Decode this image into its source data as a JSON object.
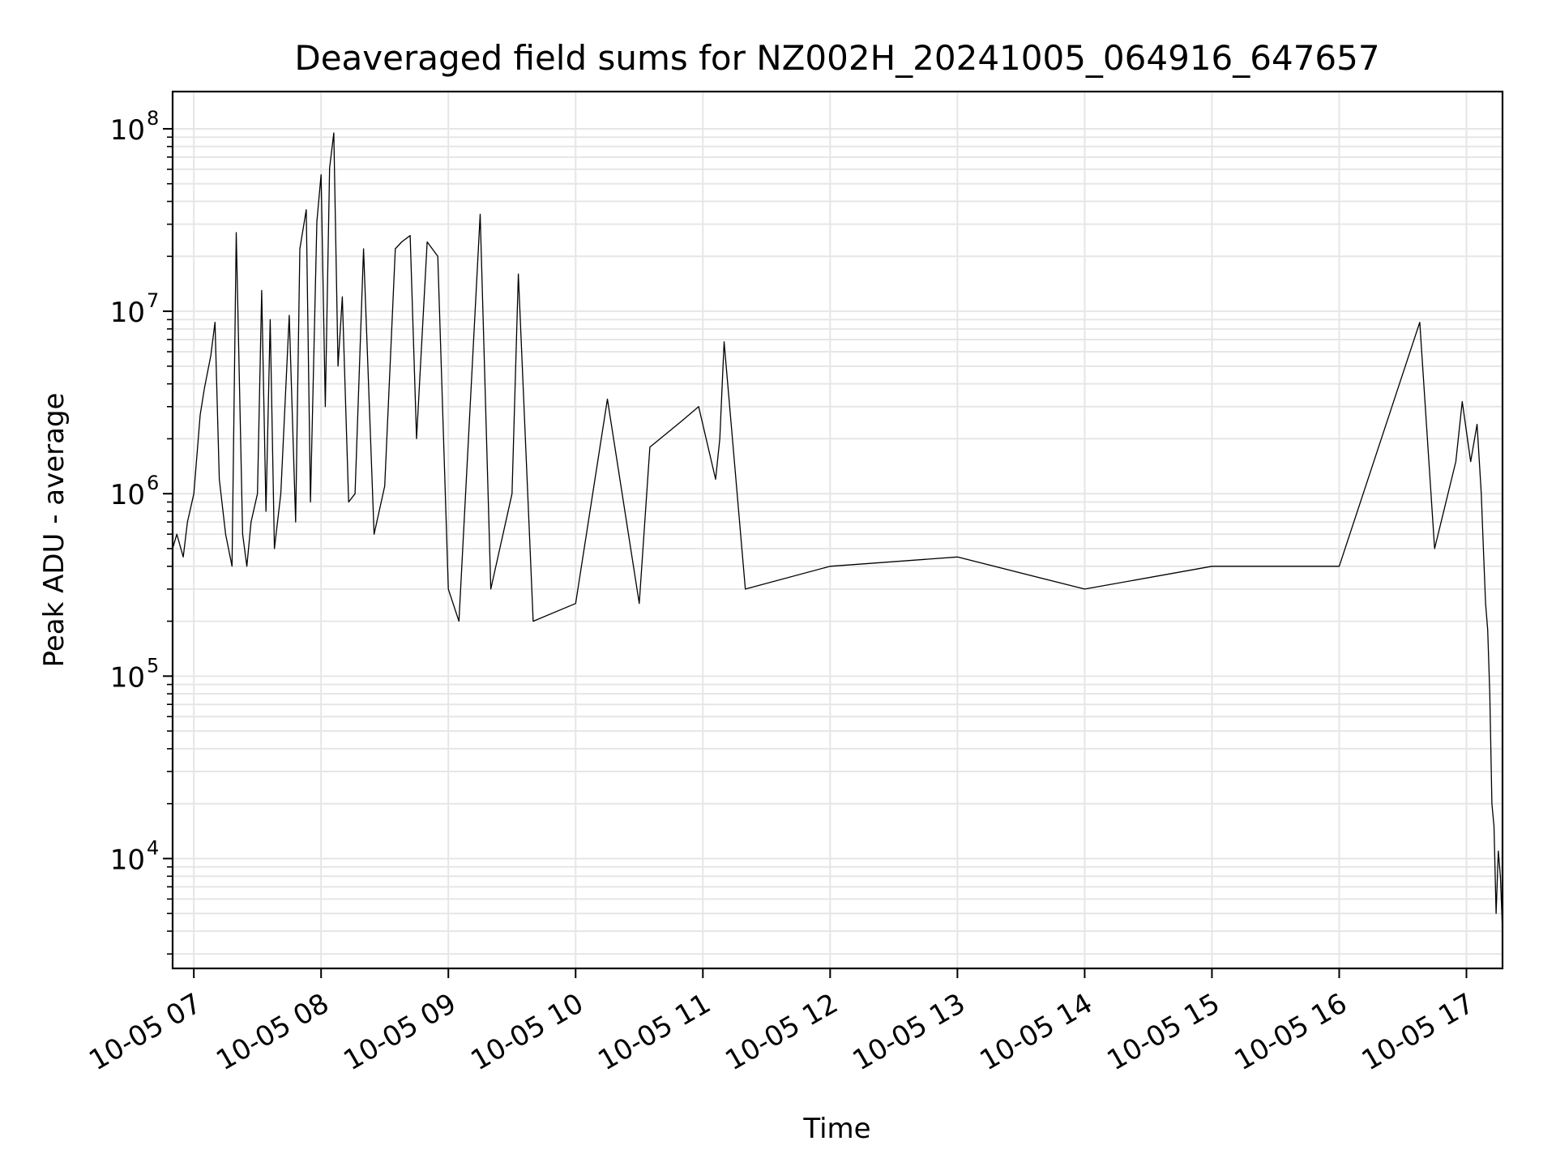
{
  "chart_data": {
    "type": "line",
    "title": "Deaveraged field sums for NZ002H_20241005_064916_647657",
    "xlabel": "Time",
    "ylabel": "Peak ADU - average",
    "yscale": "log",
    "ylim": [
      2500,
      160000000
    ],
    "xlim": [
      "2024-10-05 06:50",
      "2024-10-05 17:17"
    ],
    "grid": true,
    "grid_minor": true,
    "x_ticks": [
      {
        "value": "2024-10-05 07:00",
        "label": "10-05 07"
      },
      {
        "value": "2024-10-05 08:00",
        "label": "10-05 08"
      },
      {
        "value": "2024-10-05 09:00",
        "label": "10-05 09"
      },
      {
        "value": "2024-10-05 10:00",
        "label": "10-05 10"
      },
      {
        "value": "2024-10-05 11:00",
        "label": "10-05 11"
      },
      {
        "value": "2024-10-05 12:00",
        "label": "10-05 12"
      },
      {
        "value": "2024-10-05 13:00",
        "label": "10-05 13"
      },
      {
        "value": "2024-10-05 14:00",
        "label": "10-05 14"
      },
      {
        "value": "2024-10-05 15:00",
        "label": "10-05 15"
      },
      {
        "value": "2024-10-05 16:00",
        "label": "10-05 16"
      },
      {
        "value": "2024-10-05 17:00",
        "label": "10-05 17"
      }
    ],
    "y_ticks": [
      {
        "value": 10000,
        "base": "10",
        "exp": "4"
      },
      {
        "value": 100000,
        "base": "10",
        "exp": "5"
      },
      {
        "value": 1000000,
        "base": "10",
        "exp": "6"
      },
      {
        "value": 10000000,
        "base": "10",
        "exp": "7"
      },
      {
        "value": 100000000,
        "base": "10",
        "exp": "8"
      }
    ],
    "line_color": "#000000",
    "grid_color": "#e6e6e6",
    "series": [
      {
        "points": [
          [
            "2024-10-05 06:50",
            500000
          ],
          [
            "2024-10-05 06:52",
            600000
          ],
          [
            "2024-10-05 06:55",
            450000
          ],
          [
            "2024-10-05 06:57",
            700000
          ],
          [
            "2024-10-05 07:00",
            1000000
          ],
          [
            "2024-10-05 07:03",
            2700000
          ],
          [
            "2024-10-05 07:05",
            3800000
          ],
          [
            "2024-10-05 07:08",
            5700000
          ],
          [
            "2024-10-05 07:10",
            8700000
          ],
          [
            "2024-10-05 07:12",
            1200000
          ],
          [
            "2024-10-05 07:15",
            600000
          ],
          [
            "2024-10-05 07:18",
            400000
          ],
          [
            "2024-10-05 07:20",
            27000000
          ],
          [
            "2024-10-05 07:23",
            600000
          ],
          [
            "2024-10-05 07:25",
            400000
          ],
          [
            "2024-10-05 07:27",
            700000
          ],
          [
            "2024-10-05 07:30",
            1000000
          ],
          [
            "2024-10-05 07:32",
            13000000
          ],
          [
            "2024-10-05 07:34",
            800000
          ],
          [
            "2024-10-05 07:36",
            9000000
          ],
          [
            "2024-10-05 07:38",
            500000
          ],
          [
            "2024-10-05 07:41",
            1000000
          ],
          [
            "2024-10-05 07:45",
            9500000
          ],
          [
            "2024-10-05 07:48",
            700000
          ],
          [
            "2024-10-05 07:50",
            22000000
          ],
          [
            "2024-10-05 07:53",
            36000000
          ],
          [
            "2024-10-05 07:55",
            900000
          ],
          [
            "2024-10-05 07:58",
            31000000
          ],
          [
            "2024-10-05 08:00",
            56000000
          ],
          [
            "2024-10-05 08:02",
            3000000
          ],
          [
            "2024-10-05 08:04",
            61000000
          ],
          [
            "2024-10-05 08:06",
            95000000
          ],
          [
            "2024-10-05 08:08",
            5000000
          ],
          [
            "2024-10-05 08:10",
            12000000
          ],
          [
            "2024-10-05 08:13",
            900000
          ],
          [
            "2024-10-05 08:16",
            1000000
          ],
          [
            "2024-10-05 08:20",
            22000000
          ],
          [
            "2024-10-05 08:25",
            600000
          ],
          [
            "2024-10-05 08:30",
            1100000
          ],
          [
            "2024-10-05 08:35",
            22000000
          ],
          [
            "2024-10-05 08:38",
            24000000
          ],
          [
            "2024-10-05 08:42",
            26000000
          ],
          [
            "2024-10-05 08:45",
            2000000
          ],
          [
            "2024-10-05 08:50",
            24000000
          ],
          [
            "2024-10-05 08:55",
            20000000
          ],
          [
            "2024-10-05 09:00",
            300000
          ],
          [
            "2024-10-05 09:05",
            200000
          ],
          [
            "2024-10-05 09:15",
            34000000
          ],
          [
            "2024-10-05 09:20",
            300000
          ],
          [
            "2024-10-05 09:30",
            1000000
          ],
          [
            "2024-10-05 09:33",
            16000000
          ],
          [
            "2024-10-05 09:40",
            200000
          ],
          [
            "2024-10-05 10:00",
            250000
          ],
          [
            "2024-10-05 10:15",
            3300000
          ],
          [
            "2024-10-05 10:30",
            250000
          ],
          [
            "2024-10-05 10:35",
            1800000
          ],
          [
            "2024-10-05 10:50",
            2500000
          ],
          [
            "2024-10-05 10:58",
            3000000
          ],
          [
            "2024-10-05 11:06",
            1200000
          ],
          [
            "2024-10-05 11:08",
            2000000
          ],
          [
            "2024-10-05 11:10",
            6800000
          ],
          [
            "2024-10-05 11:20",
            300000
          ],
          [
            "2024-10-05 12:00",
            400000
          ],
          [
            "2024-10-05 13:00",
            450000
          ],
          [
            "2024-10-05 14:00",
            300000
          ],
          [
            "2024-10-05 15:00",
            400000
          ],
          [
            "2024-10-05 16:00",
            400000
          ],
          [
            "2024-10-05 16:38",
            8700000
          ],
          [
            "2024-10-05 16:45",
            500000
          ],
          [
            "2024-10-05 16:55",
            1500000
          ],
          [
            "2024-10-05 16:58",
            3200000
          ],
          [
            "2024-10-05 17:02",
            1500000
          ],
          [
            "2024-10-05 17:05",
            2400000
          ],
          [
            "2024-10-05 17:07",
            1000000
          ],
          [
            "2024-10-05 17:08",
            500000
          ],
          [
            "2024-10-05 17:09",
            250000
          ],
          [
            "2024-10-05 17:10",
            180000
          ],
          [
            "2024-10-05 17:11",
            80000
          ],
          [
            "2024-10-05 17:12",
            20000
          ],
          [
            "2024-10-05 17:13",
            15000
          ],
          [
            "2024-10-05 17:14",
            5000
          ],
          [
            "2024-10-05 17:15",
            11000
          ],
          [
            "2024-10-05 17:16",
            8000
          ],
          [
            "2024-10-05 17:17",
            4000
          ]
        ]
      }
    ]
  }
}
